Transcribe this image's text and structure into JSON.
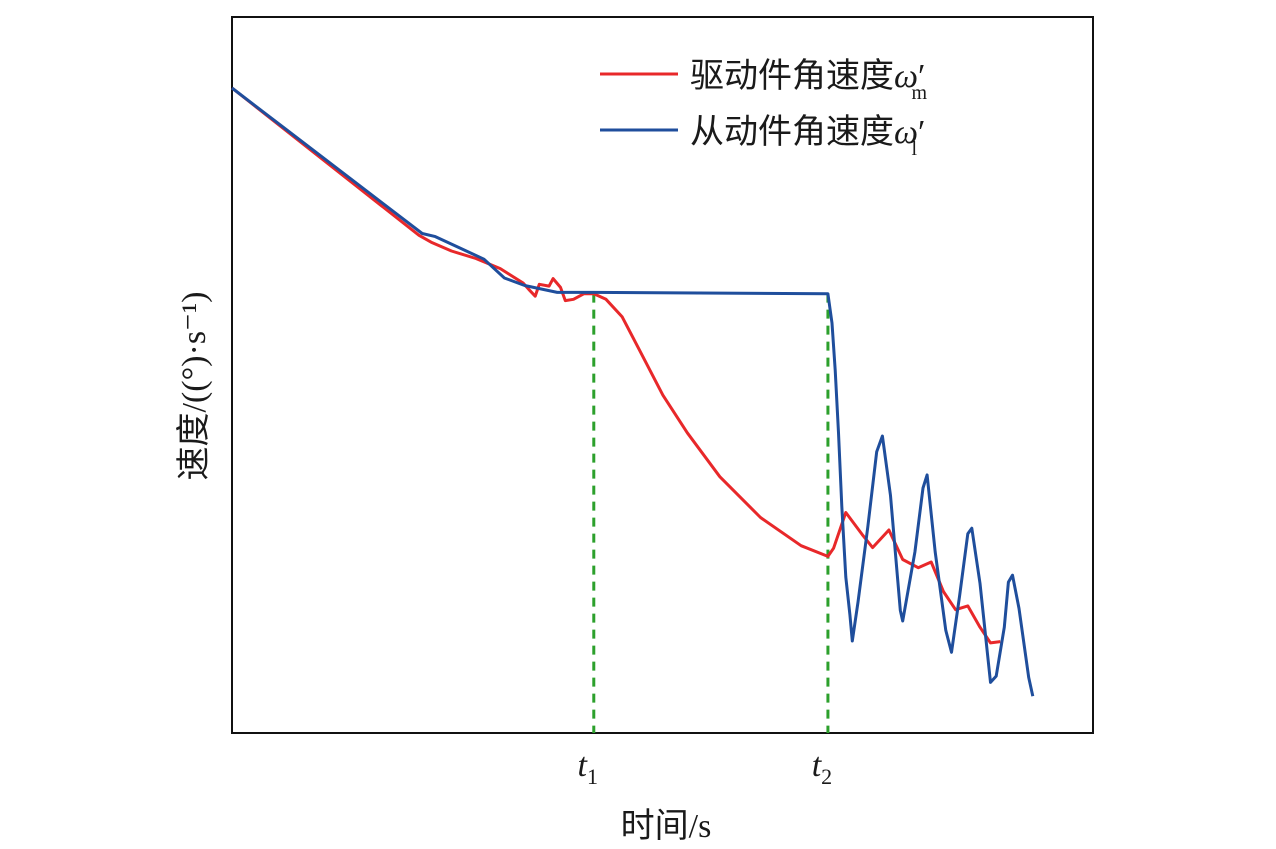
{
  "chart_data": {
    "type": "line",
    "xlabel": "时间/s",
    "ylabel": "速度/((°)·s⁻¹)",
    "grid": false,
    "legend_placement": "top-right",
    "x_range": [
      0,
      100
    ],
    "y_range": [
      0,
      100
    ],
    "ticks": [
      {
        "label": "t",
        "subscript": "1",
        "x": 44.5
      },
      {
        "label": "t",
        "subscript": "2",
        "x": 73.3
      }
    ],
    "marker_lines": [
      {
        "x": 44.5,
        "y_top": 67.2,
        "color": "#2ca02c"
      },
      {
        "x": 73.3,
        "y_top": 67.2,
        "color": "#2ca02c"
      }
    ],
    "series": [
      {
        "name": "驱动件角速度ω′m",
        "legend_main": "驱动件角速度",
        "legend_symbol": "ω",
        "legend_prime": "′",
        "legend_sub": "m",
        "color": "#e8282a",
        "points": [
          [
            0,
            100
          ],
          [
            23,
            76.5
          ],
          [
            24.5,
            75.4
          ],
          [
            27,
            74
          ],
          [
            30,
            72.8
          ],
          [
            33,
            71.2
          ],
          [
            35.8,
            68.9
          ],
          [
            36.5,
            67.9
          ],
          [
            37.3,
            66.8
          ],
          [
            37.8,
            68.7
          ],
          [
            39,
            68.4
          ],
          [
            39.5,
            69.6
          ],
          [
            40.4,
            68.2
          ],
          [
            41,
            66.1
          ],
          [
            42,
            66.3
          ],
          [
            43.3,
            67.2
          ],
          [
            44.5,
            67.2
          ],
          [
            46,
            66.3
          ],
          [
            48,
            63.5
          ],
          [
            50,
            58.5
          ],
          [
            53,
            51
          ],
          [
            56,
            45
          ],
          [
            60,
            38
          ],
          [
            65,
            31.5
          ],
          [
            70,
            27
          ],
          [
            73.3,
            25.3
          ],
          [
            74,
            26.6
          ],
          [
            75.5,
            32.3
          ],
          [
            77.5,
            28.8
          ],
          [
            78.8,
            26.7
          ],
          [
            80.8,
            29.5
          ],
          [
            82.5,
            24.8
          ],
          [
            84.4,
            23.5
          ],
          [
            86,
            24.4
          ],
          [
            87.5,
            19.7
          ],
          [
            89,
            16.8
          ],
          [
            90.5,
            17.4
          ],
          [
            92,
            14
          ],
          [
            93.3,
            11.5
          ],
          [
            94.5,
            11.7
          ]
        ]
      },
      {
        "name": "从动件角速度ω′l",
        "legend_main": "从动件角速度",
        "legend_symbol": "ω",
        "legend_prime": "′",
        "legend_sub": "l",
        "color": "#1f4e9c",
        "points": [
          [
            0,
            100
          ],
          [
            23.4,
            76.8
          ],
          [
            25,
            76.3
          ],
          [
            28,
            74.5
          ],
          [
            31,
            72.7
          ],
          [
            33.5,
            69.7
          ],
          [
            36,
            68.5
          ],
          [
            40,
            67.4
          ],
          [
            44.5,
            67.4
          ],
          [
            73.3,
            67.2
          ],
          [
            73.8,
            62.5
          ],
          [
            74.2,
            55
          ],
          [
            74.6,
            45
          ],
          [
            75,
            33.3
          ],
          [
            75.5,
            22
          ],
          [
            76,
            16
          ],
          [
            76.3,
            11.8
          ],
          [
            77,
            18
          ],
          [
            78.2,
            30
          ],
          [
            79.3,
            42
          ],
          [
            80,
            44.5
          ],
          [
            81,
            35
          ],
          [
            82.2,
            16.7
          ],
          [
            82.5,
            15
          ],
          [
            84,
            26
          ],
          [
            85,
            36.2
          ],
          [
            85.5,
            38.3
          ],
          [
            86.5,
            26
          ],
          [
            87.8,
            13.5
          ],
          [
            88.5,
            10
          ],
          [
            89.5,
            19
          ],
          [
            90.5,
            28.9
          ],
          [
            91,
            29.8
          ],
          [
            92,
            21
          ],
          [
            93.3,
            5.2
          ],
          [
            94,
            6.2
          ],
          [
            95,
            14
          ],
          [
            95.5,
            21.2
          ],
          [
            96,
            22.3
          ],
          [
            96.8,
            17
          ],
          [
            98,
            6
          ],
          [
            98.5,
            3
          ]
        ]
      }
    ]
  }
}
